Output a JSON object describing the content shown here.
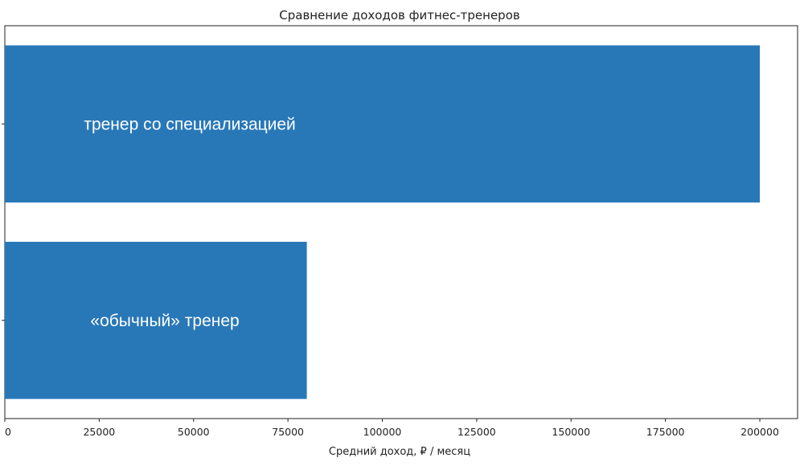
{
  "chart_data": {
    "type": "bar",
    "orientation": "horizontal",
    "title": "Сравнение доходов фитнес-тренеров",
    "xlabel": "Средний доход, ₽ / месяц",
    "ylabel": "",
    "categories": [
      "тренер со специализацией",
      "«обычный» тренер"
    ],
    "values": [
      200000,
      80000
    ],
    "xlim": [
      0,
      210000
    ],
    "xticks": [
      "0",
      "25000",
      "50000",
      "75000",
      "100000",
      "125000",
      "150000",
      "175000",
      "200000"
    ],
    "bar_color": "#2878b8",
    "category_labels_inside_bars": true,
    "grid": false,
    "legend": "none"
  }
}
